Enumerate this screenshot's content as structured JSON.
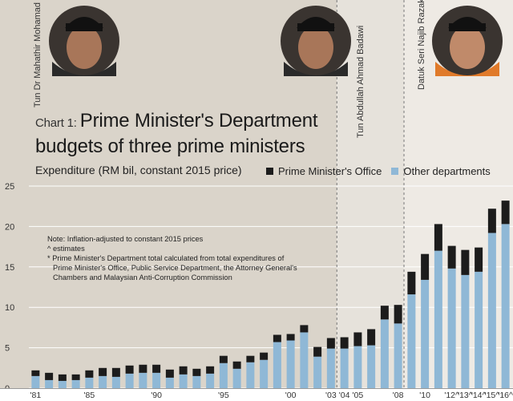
{
  "header": {
    "chart_label": "Chart 1:",
    "title_line1": "Prime Minister's Department",
    "title_line2": "budgets of three prime ministers",
    "expenditure_label": "Expenditure (RM bil, constant 2015 price)"
  },
  "prime_ministers": [
    {
      "name": "Tun Dr Mahathir Mohamad",
      "photo": "portrait-mahathir"
    },
    {
      "name": "Tun Abdullah Ahmad Badawi",
      "photo": "portrait-abdullah"
    },
    {
      "name": "Datuk Seri Najib Razak",
      "photo": "portrait-najib"
    }
  ],
  "notes": [
    "Note: Inflation-adjusted to constant 2015 prices",
    "^ estimates",
    "* Prime Minister's Department total calculated from total expenditures of",
    "Prime Minister's Office, Public Service Department, the Attorney General's",
    "Chambers and Malaysian Anti-Corruption Commission"
  ],
  "colors": {
    "pmo": "#1c1c1c",
    "other": "#8fb8d6",
    "mahathir_bg": "#dad4ca",
    "abdullah_bg": "#e6e2db",
    "najib_bg": "#eeeae4"
  },
  "chart_data": {
    "type": "bar",
    "stacked": true,
    "title": "Prime Minister's Department budgets of three prime ministers",
    "ylabel": "Expenditure (RM bil, constant 2015 price)",
    "ylim": [
      0,
      25
    ],
    "yticks": [
      0,
      5,
      10,
      15,
      20,
      25
    ],
    "grid": true,
    "legend_position": "top-right",
    "categories": [
      "1981",
      "1982",
      "1983",
      "1984",
      "1985",
      "1986",
      "1987",
      "1988",
      "1989",
      "1990",
      "1991",
      "1992",
      "1993",
      "1994",
      "1995",
      "1996",
      "1997",
      "1998",
      "1999",
      "2000",
      "2001",
      "2002",
      "2003",
      "2004",
      "2005",
      "2006",
      "2007",
      "2008",
      "2009",
      "2010",
      "2011",
      "2012",
      "2013",
      "2014",
      "2015",
      "2016"
    ],
    "tick_labels": [
      "'81",
      "",
      "",
      "",
      "'85",
      "",
      "",
      "",
      "",
      "'90",
      "",
      "",
      "",
      "",
      "'95",
      "",
      "",
      "",
      "",
      "'00",
      "",
      "",
      "'03",
      "'04",
      "'05",
      "",
      "",
      "'08",
      "",
      "'10",
      "",
      "'12^",
      "'13^",
      "'14^",
      "'15^",
      "'16^"
    ],
    "series": [
      {
        "name": "Other departments",
        "values": [
          1.5,
          1.0,
          0.9,
          1.0,
          1.3,
          1.5,
          1.4,
          1.8,
          1.9,
          1.9,
          1.3,
          1.7,
          1.5,
          1.8,
          3.1,
          2.4,
          3.2,
          3.5,
          5.7,
          5.9,
          6.9,
          3.9,
          4.9,
          4.9,
          5.2,
          5.3,
          8.5,
          8.0,
          11.6,
          13.4,
          17.0,
          14.8,
          14.0,
          14.4,
          19.2,
          20.3
        ]
      },
      {
        "name": "Prime Minister's Office",
        "values": [
          0.7,
          0.9,
          0.8,
          0.7,
          0.9,
          1.0,
          1.1,
          1.0,
          1.0,
          1.0,
          1.0,
          1.0,
          0.9,
          0.9,
          0.9,
          0.9,
          0.8,
          0.9,
          0.9,
          0.8,
          0.9,
          1.2,
          1.3,
          1.4,
          1.7,
          2.0,
          1.7,
          2.3,
          2.8,
          3.2,
          3.3,
          2.8,
          3.1,
          3.0,
          3.0,
          2.9
        ]
      }
    ],
    "eras": [
      {
        "name": "Tun Dr Mahathir Mohamad",
        "from": "1981",
        "to": "2003"
      },
      {
        "name": "Tun Abdullah Ahmad Badawi",
        "from": "2004",
        "to": "2008"
      },
      {
        "name": "Datuk Seri Najib Razak",
        "from": "2009",
        "to": "2016"
      }
    ]
  }
}
